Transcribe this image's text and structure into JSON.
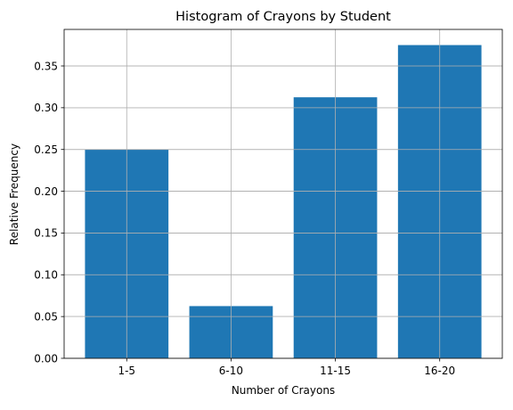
{
  "chart_data": {
    "type": "bar",
    "title": "Histogram of Crayons by Student",
    "xlabel": "Number of Crayons",
    "ylabel": "Relative Frequency",
    "categories": [
      "1-5",
      "6-10",
      "11-15",
      "16-20"
    ],
    "values": [
      0.25,
      0.0625,
      0.3125,
      0.375
    ],
    "ylim": [
      0,
      0.39375
    ],
    "yticks": [
      0.0,
      0.05,
      0.1,
      0.15,
      0.2,
      0.25,
      0.3,
      0.35
    ],
    "ytick_labels": [
      "0.00",
      "0.05",
      "0.10",
      "0.15",
      "0.20",
      "0.25",
      "0.30",
      "0.35"
    ],
    "grid": true,
    "bar_color": "#1f77b4",
    "grid_color": "#b0b0b0"
  }
}
